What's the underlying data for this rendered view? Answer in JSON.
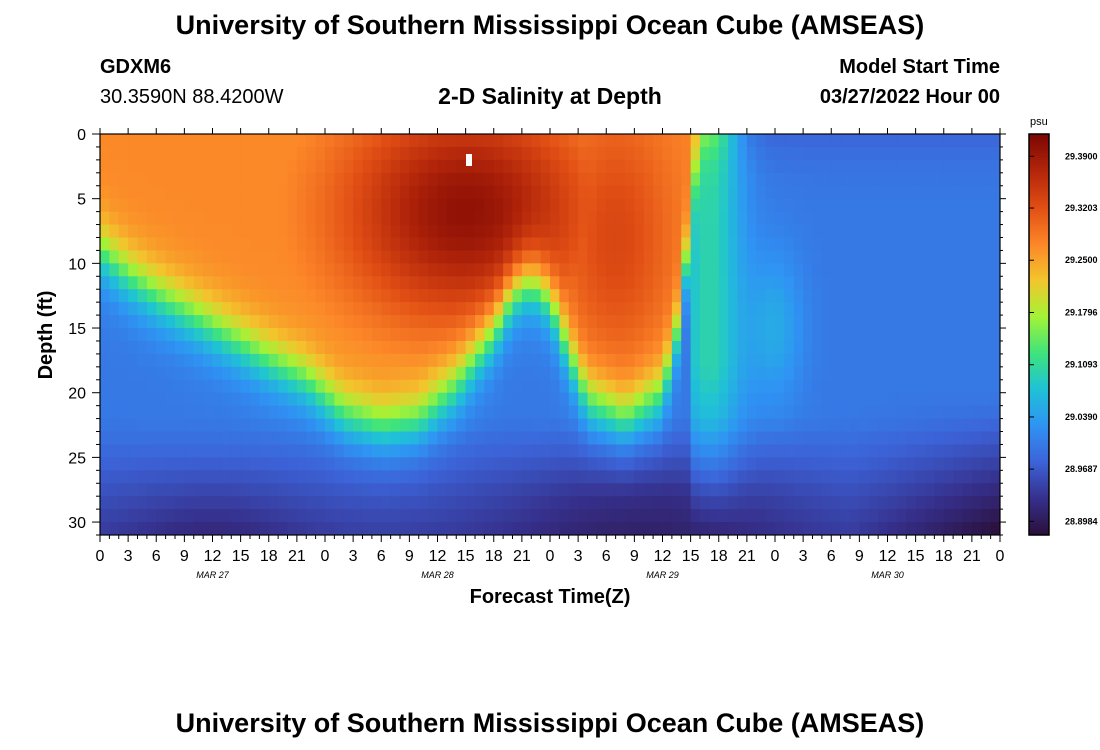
{
  "header": {
    "title": "University of Southern Mississippi Ocean Cube (AMSEAS)",
    "station": "GDXM6",
    "coords": "30.3590N  88.4200W",
    "subtitle": "2-D Salinity at Depth",
    "model_start_label": "Model Start Time",
    "model_start_value": "03/27/2022 Hour 00"
  },
  "footer": {
    "title": "University of Southern Mississippi Ocean Cube (AMSEAS)"
  },
  "colors": {
    "palette": [
      "#2a0f3a",
      "#36308c",
      "#3c63d8",
      "#2f93f4",
      "#1fc2d6",
      "#3fe47b",
      "#a4f236",
      "#f3c52d",
      "#fc8528",
      "#e04d14",
      "#b2250a",
      "#7a0603"
    ]
  },
  "chart_data": {
    "type": "heatmap",
    "title": "2-D Salinity at Depth",
    "xlabel": "Forecast Time(Z)",
    "ylabel": "Depth (ft)",
    "x_range_hours": [
      0,
      96
    ],
    "ylim": [
      0,
      31
    ],
    "y_ticks": [
      0,
      5,
      10,
      15,
      20,
      25,
      30
    ],
    "x_tick_labels": [
      "0",
      "3",
      "6",
      "9",
      "12",
      "15",
      "18",
      "21",
      "0",
      "3",
      "6",
      "9",
      "12",
      "15",
      "18",
      "21",
      "0",
      "3",
      "6",
      "9",
      "12",
      "15",
      "18",
      "21",
      "0",
      "3",
      "6",
      "9",
      "12",
      "15",
      "18",
      "21",
      "0"
    ],
    "day_labels": [
      "MAR 27",
      "MAR 28",
      "MAR 29",
      "MAR 30"
    ],
    "colorbar": {
      "unit": "psu",
      "labels": [
        "29.3900",
        "29.3203",
        "29.2500",
        "29.1796",
        "29.1093",
        "29.0390",
        "28.9687",
        "28.8984"
      ],
      "min": 28.88,
      "max": 29.42
    },
    "halocline_depth_ft": [
      {
        "t": 0,
        "d": 9
      },
      {
        "t": 3,
        "d": 11
      },
      {
        "t": 6,
        "d": 12.5
      },
      {
        "t": 12,
        "d": 15
      },
      {
        "t": 18,
        "d": 17.5
      },
      {
        "t": 22,
        "d": 19
      },
      {
        "t": 26,
        "d": 21.5
      },
      {
        "t": 30,
        "d": 22.5
      },
      {
        "t": 34,
        "d": 22
      },
      {
        "t": 38,
        "d": 19.5
      },
      {
        "t": 42,
        "d": 15.5
      },
      {
        "t": 44,
        "d": 12.5
      },
      {
        "t": 46,
        "d": 11.5
      },
      {
        "t": 48,
        "d": 13
      },
      {
        "t": 50,
        "d": 17
      },
      {
        "t": 52,
        "d": 20.5
      },
      {
        "t": 56,
        "d": 22
      },
      {
        "t": 60,
        "d": 20
      },
      {
        "t": 62,
        "d": 14
      },
      {
        "t": 63,
        "d": 6
      },
      {
        "t": 64,
        "d": 0
      },
      {
        "t": 96,
        "d": 0
      }
    ],
    "surface_maximum": {
      "t_hour": 39,
      "depth_ft": 6,
      "salinity_psu": 29.4
    },
    "bottom_minimum": {
      "t_hour": 96,
      "depth_ft": 31,
      "salinity_psu": 28.89
    }
  }
}
